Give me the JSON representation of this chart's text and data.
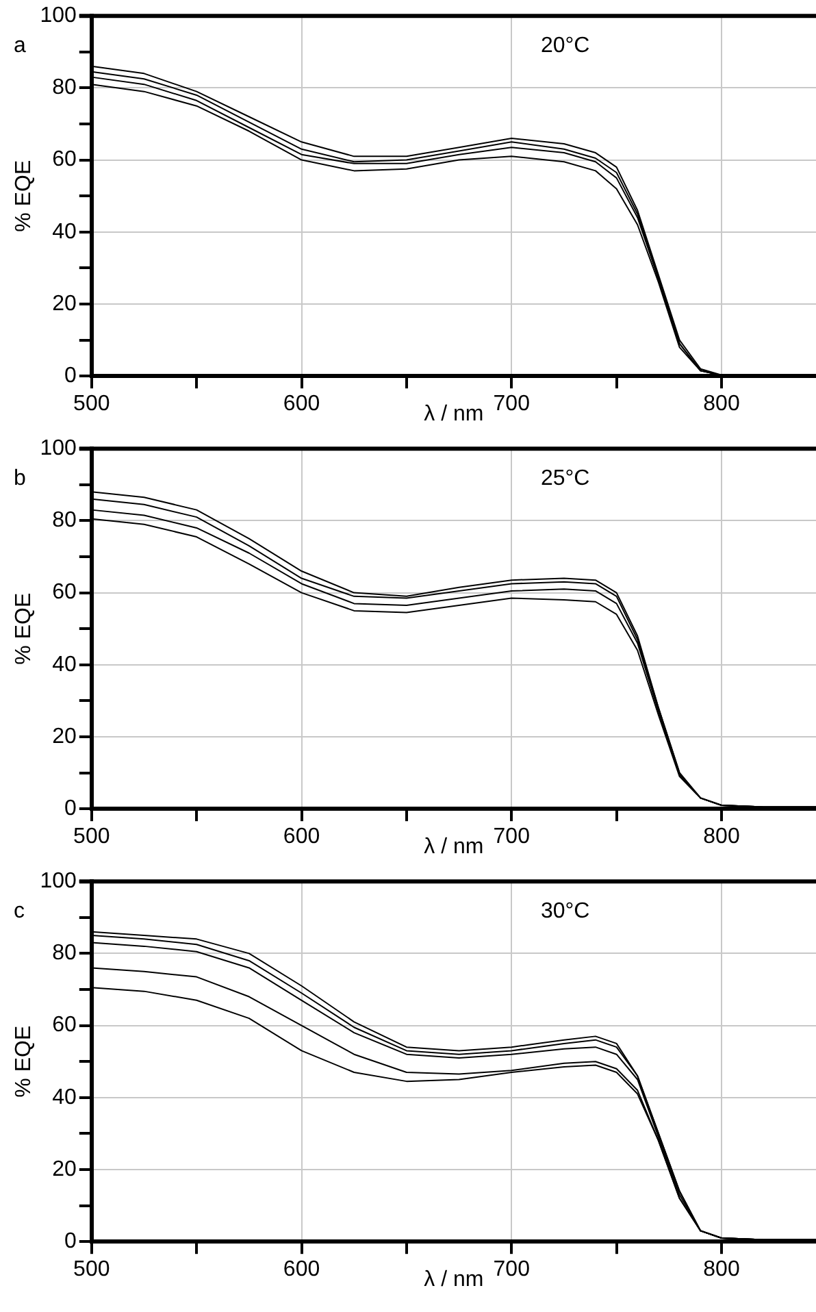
{
  "chart_data": [
    {
      "type": "line",
      "xlabel": "λ / nm",
      "ylabel": "% EQE",
      "annotations": [
        "a",
        "20°C"
      ],
      "xlim": [
        500,
        845
      ],
      "ylim": [
        0,
        100
      ],
      "xticks": [
        500,
        {
          "value": 550,
          "label": null
        },
        600,
        {
          "value": 650,
          "label": null
        },
        700,
        {
          "value": 750,
          "label": null
        },
        800
      ],
      "yticks": [
        0,
        {
          "value": 10,
          "label": null
        },
        20,
        {
          "value": 30,
          "label": null
        },
        40,
        {
          "value": 50,
          "label": null
        },
        60,
        {
          "value": 70,
          "label": null
        },
        80,
        {
          "value": 90,
          "label": null
        },
        100
      ],
      "grid": true,
      "marker": "none",
      "line_style": "solid",
      "x": [
        500,
        525,
        550,
        575,
        600,
        625,
        650,
        675,
        700,
        725,
        740,
        750,
        760,
        770,
        780,
        790,
        800,
        810
      ],
      "series": [
        {
          "color": "#000000",
          "values": [
            86,
            84,
            79,
            72,
            65,
            61,
            61,
            63.5,
            66,
            64.5,
            62,
            58,
            46,
            28,
            10,
            2,
            0.3,
            0
          ]
        },
        {
          "color": "#000000",
          "values": [
            84.5,
            82.5,
            78,
            70.5,
            63,
            59.5,
            60,
            62.5,
            65,
            63,
            60.5,
            56.5,
            45,
            27,
            9,
            1.5,
            0.2,
            0
          ]
        },
        {
          "color": "#000000",
          "values": [
            83,
            81,
            76.5,
            69,
            61.5,
            59,
            59,
            61.5,
            63.5,
            62,
            59.5,
            55,
            44,
            27,
            9,
            1.5,
            0.2,
            0
          ]
        },
        {
          "color": "#000000",
          "values": [
            81,
            79,
            75,
            68,
            60,
            57,
            57.5,
            60,
            61,
            59.5,
            57,
            52,
            42,
            26,
            8,
            1.5,
            0.2,
            0
          ]
        }
      ]
    },
    {
      "type": "line",
      "xlabel": "λ / nm",
      "ylabel": "% EQE",
      "annotations": [
        "b",
        "25°C"
      ],
      "xlim": [
        500,
        845
      ],
      "ylim": [
        0,
        100
      ],
      "xticks": [
        500,
        {
          "value": 550,
          "label": null
        },
        600,
        {
          "value": 650,
          "label": null
        },
        700,
        {
          "value": 750,
          "label": null
        },
        800
      ],
      "yticks": [
        0,
        {
          "value": 10,
          "label": null
        },
        20,
        {
          "value": 30,
          "label": null
        },
        40,
        {
          "value": 50,
          "label": null
        },
        60,
        {
          "value": 70,
          "label": null
        },
        80,
        {
          "value": 90,
          "label": null
        },
        100
      ],
      "grid": true,
      "marker": "none",
      "line_style": "solid",
      "x": [
        500,
        525,
        550,
        575,
        600,
        625,
        650,
        675,
        700,
        725,
        740,
        750,
        760,
        770,
        780,
        790,
        800,
        820,
        845
      ],
      "series": [
        {
          "color": "#000000",
          "values": [
            88,
            86.5,
            83,
            75,
            66,
            60,
            59,
            61.5,
            63.5,
            64,
            63.5,
            60,
            48,
            28,
            10,
            3,
            1,
            0.5,
            0.5
          ]
        },
        {
          "color": "#000000",
          "values": [
            86,
            84.5,
            81,
            73,
            64,
            59,
            58.5,
            60.5,
            62.5,
            63,
            62.5,
            59,
            47,
            28,
            10,
            3,
            1,
            0.5,
            0.5
          ]
        },
        {
          "color": "#000000",
          "values": [
            83,
            81.5,
            78,
            71,
            62.5,
            57,
            56.5,
            58.5,
            60.5,
            61,
            60.5,
            57,
            46,
            27,
            9.5,
            3,
            1,
            0.5,
            0.5
          ]
        },
        {
          "color": "#000000",
          "values": [
            80.5,
            79,
            75.5,
            68,
            60,
            55,
            54.5,
            56.5,
            58.5,
            58,
            57.5,
            54,
            44,
            26,
            9,
            3,
            1,
            0.5,
            0.5
          ]
        }
      ]
    },
    {
      "type": "line",
      "xlabel": "λ / nm",
      "ylabel": "% EQE",
      "annotations": [
        "c",
        "30°C"
      ],
      "xlim": [
        500,
        845
      ],
      "ylim": [
        0,
        100
      ],
      "xticks": [
        500,
        {
          "value": 550,
          "label": null
        },
        600,
        {
          "value": 650,
          "label": null
        },
        700,
        {
          "value": 750,
          "label": null
        },
        800
      ],
      "yticks": [
        0,
        {
          "value": 10,
          "label": null
        },
        20,
        {
          "value": 30,
          "label": null
        },
        40,
        {
          "value": 50,
          "label": null
        },
        60,
        {
          "value": 70,
          "label": null
        },
        80,
        {
          "value": 90,
          "label": null
        },
        100
      ],
      "grid": true,
      "marker": "none",
      "line_style": "solid",
      "x": [
        500,
        525,
        550,
        575,
        600,
        625,
        650,
        675,
        700,
        725,
        740,
        750,
        760,
        770,
        780,
        790,
        800,
        820,
        845
      ],
      "series": [
        {
          "color": "#000000",
          "values": [
            86,
            85,
            84,
            80,
            71,
            61,
            54,
            53,
            54,
            56,
            57,
            55,
            46,
            30,
            14,
            3,
            1,
            0.5,
            0.5
          ]
        },
        {
          "color": "#000000",
          "values": [
            85,
            84,
            82.5,
            78,
            69,
            59.5,
            53,
            52,
            53,
            55,
            56,
            54,
            46,
            30,
            14,
            3,
            1,
            0.5,
            0.5
          ]
        },
        {
          "color": "#000000",
          "values": [
            83,
            82,
            80.5,
            76,
            67,
            58,
            52,
            51,
            52,
            53.5,
            54,
            52,
            45,
            29,
            13,
            3,
            1,
            0.5,
            0.5
          ]
        },
        {
          "color": "#000000",
          "values": [
            76,
            75,
            73.5,
            68,
            60,
            52,
            47,
            46.5,
            47.5,
            49.5,
            50,
            48,
            42,
            28,
            12,
            3,
            1,
            0.5,
            0.5
          ]
        },
        {
          "color": "#000000",
          "values": [
            70.5,
            69.5,
            67,
            62,
            53,
            47,
            44.5,
            45,
            47,
            48.5,
            49,
            47,
            41,
            28,
            12,
            3,
            1,
            0.5,
            0.5
          ]
        }
      ]
    }
  ]
}
